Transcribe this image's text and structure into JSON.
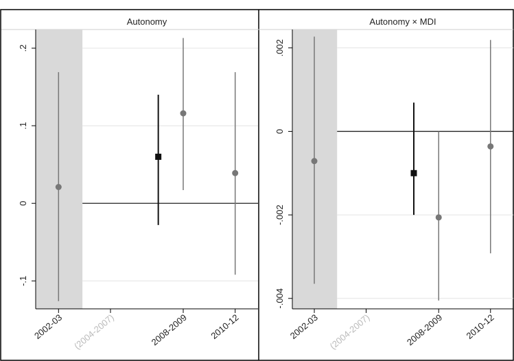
{
  "chart_data": [
    {
      "type": "errorbar",
      "title": "Autonomy",
      "xlim": [
        2001.4,
        2012.1
      ],
      "ylim": [
        -0.136,
        0.224
      ],
      "xticks": [
        {
          "value": 2002.5,
          "label": "2002-03"
        },
        {
          "value": 2005,
          "label": "(2004-2007)",
          "color": "#bbbbbb"
        },
        {
          "value": 2008.5,
          "label": "2008-2009"
        },
        {
          "value": 2011,
          "label": "2010-12"
        }
      ],
      "yticks": [
        {
          "value": -0.1,
          "label": "-.1"
        },
        0,
        {
          "value": 0.1,
          "label": ".1"
        },
        {
          "value": 0.2,
          "label": ".2"
        }
      ],
      "shade": [
        2001.4,
        2003.65
      ],
      "shade_color": "#d9d9d9",
      "refline": 0,
      "grid": true,
      "series": [
        {
          "color": "#777777",
          "marker": "circle",
          "x": [
            2002.5,
            2008.5,
            2011
          ],
          "values": [
            0.021,
            0.116,
            0.039
          ],
          "lo": [
            -0.126,
            0.017,
            -0.092
          ],
          "hi": [
            0.169,
            0.213,
            0.169
          ]
        },
        {
          "color": "#111111",
          "marker": "square",
          "x": [
            2007.3
          ],
          "values": [
            0.06
          ],
          "lo": [
            -0.028
          ],
          "hi": [
            0.14
          ]
        }
      ]
    },
    {
      "type": "errorbar",
      "title": "Autonomy × MDI",
      "xlim": [
        2001.44,
        2012.1
      ],
      "ylim": [
        -0.00425,
        0.00244
      ],
      "xticks": [
        {
          "value": 2002.5,
          "label": "2002-03"
        },
        {
          "value": 2005,
          "label": "(2004-2007)",
          "color": "#bbbbbb"
        },
        {
          "value": 2008.5,
          "label": "2008-2009"
        },
        {
          "value": 2011,
          "label": "2010-12"
        }
      ],
      "yticks": [
        {
          "value": -0.004,
          "label": "-.004"
        },
        {
          "value": -0.002,
          "label": "-.002"
        },
        0,
        {
          "value": 0.002,
          "label": ".002"
        }
      ],
      "shade": [
        2001.44,
        2003.6
      ],
      "shade_color": "#d9d9d9",
      "refline": 0,
      "grid": true,
      "series": [
        {
          "color": "#777777",
          "marker": "circle",
          "x": [
            2002.5,
            2008.5,
            2011
          ],
          "values": [
            -0.00071,
            -0.00206,
            -0.00036
          ],
          "lo": [
            -0.00365,
            -0.00405,
            -0.00292
          ],
          "hi": [
            0.00227,
            0,
            0.00219
          ]
        },
        {
          "color": "#111111",
          "marker": "square",
          "x": [
            2007.3
          ],
          "values": [
            -0.001
          ],
          "lo": [
            -0.002
          ],
          "hi": [
            0.00069
          ]
        }
      ]
    }
  ]
}
